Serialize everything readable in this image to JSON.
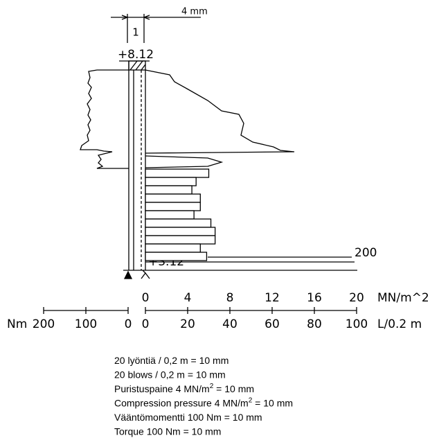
{
  "header": {
    "width_label": "4 mm",
    "column_label": "1",
    "top_level": "+8.12",
    "bottom_level": "+3.12",
    "max_label": "200"
  },
  "pressure_axis": {
    "unit": "MN/m^2",
    "lim": [
      0,
      20
    ],
    "ticks": [
      0,
      4,
      8,
      12,
      16,
      20
    ]
  },
  "torque_axis": {
    "unit": "Nm",
    "lim": [
      200,
      0
    ],
    "ticks": [
      200,
      100,
      0
    ]
  },
  "blows_axis": {
    "unit": "L/0.2 m",
    "lim": [
      0,
      100
    ],
    "ticks": [
      0,
      20,
      40,
      60,
      80,
      100
    ]
  },
  "blows": [
    30,
    24,
    22,
    26,
    26,
    23,
    31,
    33,
    33,
    26,
    29
  ],
  "notes": [
    {
      "text": "20 lyöntiä / 0,2 m = 10 mm"
    },
    {
      "text": "20 blows / 0,2 m = 10 mm"
    },
    {
      "text": "Puristuspaine 4 MN/m",
      "sup": "2",
      "rest": " = 10 mm"
    },
    {
      "text": "Compression pressure 4 MN/m",
      "sup": "2",
      "rest": " = 10 mm"
    },
    {
      "text": "Vääntömomentti 100 Nm = 10 mm"
    },
    {
      "text": "Torque 100 Nm = 10 mm"
    }
  ]
}
